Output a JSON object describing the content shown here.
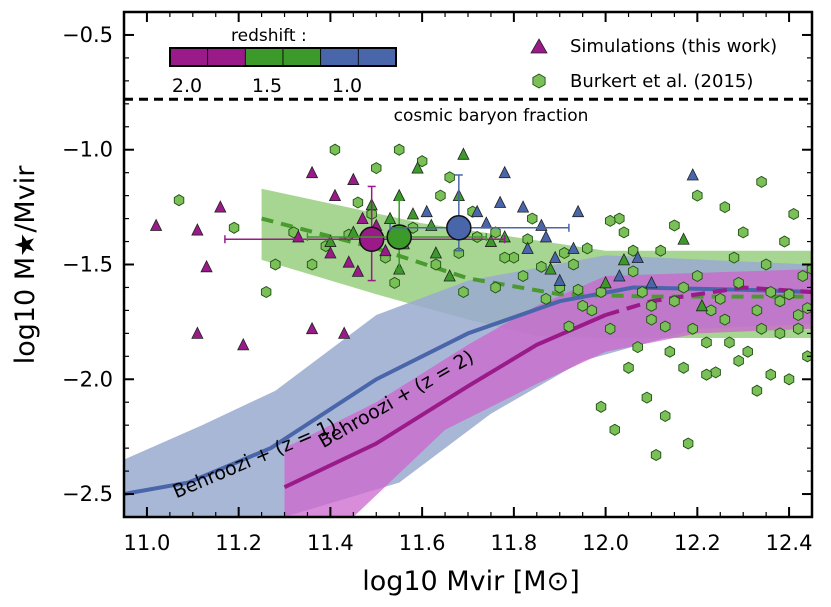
{
  "chart_data": {
    "type": "scatter",
    "title": "",
    "xlabel": "log10 Mvir [M⊙]",
    "ylabel": "log10 M★/Mvir",
    "xlim": [
      10.95,
      12.45
    ],
    "ylim": [
      -2.6,
      -0.4
    ],
    "xticks": [
      11.0,
      11.2,
      11.4,
      11.6,
      11.8,
      12.0,
      12.2,
      12.4
    ],
    "yticks": [
      -2.5,
      -2.0,
      -1.5,
      -1.0,
      -0.5
    ],
    "xtick_labels": [
      "11.0",
      "11.2",
      "11.4",
      "11.6",
      "11.8",
      "12.0",
      "12.2",
      "12.4"
    ],
    "ytick_labels": [
      "−2.5",
      "−2.0",
      "−1.5",
      "−1.0",
      "−0.5"
    ],
    "colors": {
      "magenta": "#9a1a8a",
      "green": "#3c9a2a",
      "blue": "#4a66aa",
      "green_point": "#7abf58",
      "behroozi_z2_band": "#cc66cc",
      "behroozi_z1_band": "#9aaad0",
      "burkert_band": "#7cc25e"
    },
    "colorbar": {
      "label": "redshift :",
      "ticks": [
        2.0,
        1.5,
        1.0
      ],
      "tick_labels": [
        "2.0",
        "1.5",
        "1.0"
      ],
      "segments": [
        "#9a1a8a",
        "#9a1a8a",
        "#3c9a2a",
        "#3c9a2a",
        "#4a66aa",
        "#4a66aa"
      ]
    },
    "legend": {
      "position": "top-right",
      "entries": [
        {
          "label": "Simulations (this work)",
          "marker": "triangle",
          "color": "#9a1a8a"
        },
        {
          "label": "Burkert et al. (2015)",
          "marker": "hexagon",
          "color": "#7abf58"
        }
      ]
    },
    "annotations": {
      "baryon_fraction": {
        "label": "cosmic baryon fraction",
        "y": -0.78
      },
      "behroozi_z1": {
        "label": "Behroozi + (z = 1)",
        "x": 11.24,
        "y": -2.37,
        "angle": 23
      },
      "behroozi_z2": {
        "label": "Behroozi + (z = 2)",
        "x": 11.55,
        "y": -2.11,
        "angle": 30
      }
    },
    "burkert_band": {
      "upper": [
        [
          11.25,
          -1.17
        ],
        [
          11.6,
          -1.32
        ],
        [
          11.8,
          -1.38
        ],
        [
          12.0,
          -1.44
        ],
        [
          12.2,
          -1.44
        ],
        [
          12.45,
          -1.44
        ]
      ],
      "lower": [
        [
          11.25,
          -1.48
        ],
        [
          11.5,
          -1.63
        ],
        [
          11.7,
          -1.74
        ],
        [
          11.85,
          -1.81
        ],
        [
          12.0,
          -1.82
        ],
        [
          12.2,
          -1.82
        ],
        [
          12.45,
          -1.82
        ]
      ],
      "median": [
        [
          11.25,
          -1.3
        ],
        [
          11.5,
          -1.43
        ],
        [
          11.7,
          -1.56
        ],
        [
          11.9,
          -1.63
        ],
        [
          12.1,
          -1.64
        ],
        [
          12.45,
          -1.64
        ]
      ]
    },
    "behroozi_z1": {
      "line": [
        [
          10.95,
          -2.5
        ],
        [
          11.09,
          -2.45
        ],
        [
          11.27,
          -2.3
        ],
        [
          11.5,
          -2.0
        ],
        [
          11.7,
          -1.8
        ],
        [
          11.9,
          -1.66
        ],
        [
          12.06,
          -1.6
        ],
        [
          12.3,
          -1.61
        ],
        [
          12.45,
          -1.62
        ]
      ],
      "upper": [
        [
          10.95,
          -2.35
        ],
        [
          11.12,
          -2.2
        ],
        [
          11.28,
          -2.05
        ],
        [
          11.5,
          -1.72
        ],
        [
          11.7,
          -1.57
        ],
        [
          12.0,
          -1.46
        ],
        [
          12.45,
          -1.5
        ]
      ],
      "lower": [
        [
          10.95,
          -2.6
        ],
        [
          11.3,
          -2.6
        ],
        [
          11.55,
          -2.45
        ],
        [
          11.75,
          -2.15
        ],
        [
          11.95,
          -1.92
        ],
        [
          12.2,
          -1.78
        ],
        [
          12.45,
          -1.76
        ]
      ]
    },
    "behroozi_z2": {
      "line": [
        [
          11.3,
          -2.47
        ],
        [
          11.5,
          -2.28
        ],
        [
          11.7,
          -2.03
        ],
        [
          11.85,
          -1.85
        ],
        [
          12.0,
          -1.72
        ],
        [
          12.1,
          -1.66
        ],
        [
          12.3,
          -1.6
        ],
        [
          12.45,
          -1.62
        ]
      ],
      "upper": [
        [
          11.3,
          -2.3
        ],
        [
          11.5,
          -2.1
        ],
        [
          11.7,
          -1.85
        ],
        [
          11.85,
          -1.68
        ],
        [
          12.0,
          -1.55
        ],
        [
          12.45,
          -1.52
        ]
      ],
      "lower": [
        [
          11.3,
          -2.6
        ],
        [
          11.45,
          -2.6
        ],
        [
          11.65,
          -2.22
        ],
        [
          11.85,
          -2.02
        ],
        [
          12.0,
          -1.88
        ],
        [
          12.2,
          -1.8
        ],
        [
          12.45,
          -1.78
        ]
      ],
      "dashed_from_x": 12.0
    },
    "mean_points": [
      {
        "redshift": 2.0,
        "x": 11.49,
        "y": -1.39,
        "xerr_lo": 11.17,
        "xerr_hi": 11.78,
        "yerr_lo": -1.57,
        "yerr_hi": -1.16,
        "color": "#9a1a8a"
      },
      {
        "redshift": 1.5,
        "x": 11.55,
        "y": -1.38,
        "xerr_lo": 11.35,
        "xerr_hi": 11.74,
        "yerr_lo": -1.52,
        "yerr_hi": -1.22,
        "color": "#3c9a2a"
      },
      {
        "redshift": 1.0,
        "x": 11.68,
        "y": -1.34,
        "xerr_lo": 11.53,
        "xerr_hi": 11.92,
        "yerr_lo": -1.44,
        "yerr_hi": -1.11,
        "color": "#4a66aa"
      }
    ],
    "simulations": [
      {
        "x": 11.02,
        "y": -1.33,
        "c": "m"
      },
      {
        "x": 11.11,
        "y": -1.35,
        "c": "m"
      },
      {
        "x": 11.13,
        "y": -1.51,
        "c": "m"
      },
      {
        "x": 11.16,
        "y": -1.25,
        "c": "m"
      },
      {
        "x": 11.11,
        "y": -1.8,
        "c": "m"
      },
      {
        "x": 11.21,
        "y": -1.85,
        "c": "m"
      },
      {
        "x": 11.36,
        "y": -1.1,
        "c": "m"
      },
      {
        "x": 11.45,
        "y": -1.13,
        "c": "m"
      },
      {
        "x": 11.33,
        "y": -1.38,
        "c": "m"
      },
      {
        "x": 11.4,
        "y": -1.45,
        "c": "m"
      },
      {
        "x": 11.44,
        "y": -1.49,
        "c": "m"
      },
      {
        "x": 11.46,
        "y": -1.53,
        "c": "m"
      },
      {
        "x": 11.47,
        "y": -1.3,
        "c": "m"
      },
      {
        "x": 11.43,
        "y": -1.8,
        "c": "m"
      },
      {
        "x": 11.36,
        "y": -1.78,
        "c": "m"
      },
      {
        "x": 11.52,
        "y": -1.44,
        "c": "m"
      },
      {
        "x": 11.5,
        "y": -1.33,
        "c": "m"
      },
      {
        "x": 11.41,
        "y": -1.2,
        "c": "m"
      },
      {
        "x": 11.49,
        "y": -1.24,
        "c": "g"
      },
      {
        "x": 11.53,
        "y": -1.3,
        "c": "g"
      },
      {
        "x": 11.56,
        "y": -1.41,
        "c": "g"
      },
      {
        "x": 11.58,
        "y": -1.28,
        "c": "g"
      },
      {
        "x": 11.55,
        "y": -1.2,
        "c": "g"
      },
      {
        "x": 11.62,
        "y": -1.33,
        "c": "g"
      },
      {
        "x": 11.63,
        "y": -1.45,
        "c": "g"
      },
      {
        "x": 11.68,
        "y": -1.2,
        "c": "g"
      },
      {
        "x": 11.69,
        "y": -1.02,
        "c": "g"
      },
      {
        "x": 11.59,
        "y": -1.08,
        "c": "g"
      },
      {
        "x": 11.75,
        "y": -1.4,
        "c": "g"
      },
      {
        "x": 11.78,
        "y": -1.38,
        "c": "g"
      },
      {
        "x": 11.4,
        "y": -1.4,
        "c": "g"
      },
      {
        "x": 11.45,
        "y": -1.36,
        "c": "g"
      },
      {
        "x": 11.88,
        "y": -1.52,
        "c": "g"
      },
      {
        "x": 11.66,
        "y": -1.55,
        "c": "g"
      },
      {
        "x": 12.04,
        "y": -1.48,
        "c": "g"
      },
      {
        "x": 12.17,
        "y": -1.39,
        "c": "g"
      },
      {
        "x": 12.21,
        "y": -1.68,
        "c": "g"
      },
      {
        "x": 12.0,
        "y": -1.58,
        "c": "g"
      },
      {
        "x": 11.55,
        "y": -1.52,
        "c": "g"
      },
      {
        "x": 11.72,
        "y": -1.27,
        "c": "b"
      },
      {
        "x": 11.77,
        "y": -1.23,
        "c": "b"
      },
      {
        "x": 11.74,
        "y": -1.32,
        "c": "b"
      },
      {
        "x": 11.82,
        "y": -1.25,
        "c": "b"
      },
      {
        "x": 11.86,
        "y": -1.33,
        "c": "b"
      },
      {
        "x": 11.94,
        "y": -1.27,
        "c": "b"
      },
      {
        "x": 11.87,
        "y": -1.38,
        "c": "b"
      },
      {
        "x": 11.83,
        "y": -1.43,
        "c": "b"
      },
      {
        "x": 11.78,
        "y": -1.1,
        "c": "b"
      },
      {
        "x": 11.61,
        "y": -1.27,
        "c": "b"
      },
      {
        "x": 11.93,
        "y": -1.43,
        "c": "b"
      },
      {
        "x": 12.07,
        "y": -1.47,
        "c": "b"
      },
      {
        "x": 12.19,
        "y": -1.11,
        "c": "b"
      },
      {
        "x": 12.03,
        "y": -1.55,
        "c": "b"
      },
      {
        "x": 12.1,
        "y": -1.58,
        "c": "b"
      },
      {
        "x": 11.9,
        "y": -1.57,
        "c": "b"
      },
      {
        "x": 11.89,
        "y": -1.47,
        "c": "b"
      }
    ],
    "burkert": [
      [
        11.07,
        -1.22
      ],
      [
        11.19,
        -1.34
      ],
      [
        11.26,
        -1.62
      ],
      [
        11.28,
        -1.5
      ],
      [
        11.32,
        -1.36
      ],
      [
        11.36,
        -1.5
      ],
      [
        11.39,
        -1.42
      ],
      [
        11.44,
        -1.37
      ],
      [
        11.48,
        -1.4
      ],
      [
        11.52,
        -1.47
      ],
      [
        11.41,
        -1.0
      ],
      [
        11.55,
        -1.0
      ],
      [
        11.5,
        -1.08
      ],
      [
        11.6,
        -1.05
      ],
      [
        11.66,
        -1.12
      ],
      [
        11.64,
        -1.2
      ],
      [
        11.58,
        -1.34
      ],
      [
        11.46,
        -1.23
      ],
      [
        11.71,
        -1.27
      ],
      [
        11.76,
        -1.36
      ],
      [
        11.72,
        -1.38
      ],
      [
        11.8,
        -1.47
      ],
      [
        11.83,
        -1.39
      ],
      [
        11.86,
        -1.51
      ],
      [
        11.87,
        -1.65
      ],
      [
        11.9,
        -1.6
      ],
      [
        11.93,
        -1.5
      ],
      [
        11.94,
        -1.61
      ],
      [
        11.96,
        -1.43
      ],
      [
        11.97,
        -1.7
      ],
      [
        11.99,
        -1.62
      ],
      [
        12.01,
        -1.78
      ],
      [
        12.03,
        -1.3
      ],
      [
        12.04,
        -1.36
      ],
      [
        12.06,
        -1.53
      ],
      [
        12.08,
        -1.62
      ],
      [
        12.1,
        -1.68
      ],
      [
        12.12,
        -1.44
      ],
      [
        12.13,
        -1.77
      ],
      [
        12.14,
        -1.88
      ],
      [
        12.17,
        -1.6
      ],
      [
        12.19,
        -1.78
      ],
      [
        12.2,
        -1.55
      ],
      [
        12.22,
        -1.84
      ],
      [
        12.24,
        -1.97
      ],
      [
        12.25,
        -1.65
      ],
      [
        12.26,
        -1.74
      ],
      [
        12.28,
        -1.47
      ],
      [
        12.29,
        -1.58
      ],
      [
        12.31,
        -1.88
      ],
      [
        12.33,
        -1.7
      ],
      [
        12.35,
        -1.5
      ],
      [
        12.36,
        -1.62
      ],
      [
        12.38,
        -1.8
      ],
      [
        12.39,
        -1.4
      ],
      [
        12.4,
        -1.63
      ],
      [
        12.42,
        -1.78
      ],
      [
        12.43,
        -1.55
      ],
      [
        12.44,
        -1.69
      ],
      [
        12.3,
        -1.36
      ],
      [
        12.2,
        -1.2
      ],
      [
        12.26,
        -1.25
      ],
      [
        12.41,
        -1.28
      ],
      [
        12.34,
        -1.14
      ],
      [
        12.15,
        -1.33
      ],
      [
        12.01,
        -1.31
      ],
      [
        11.99,
        -2.12
      ],
      [
        12.02,
        -2.22
      ],
      [
        12.13,
        -2.16
      ],
      [
        12.18,
        -2.28
      ],
      [
        12.11,
        -2.33
      ],
      [
        12.17,
        -1.95
      ],
      [
        12.05,
        -1.95
      ],
      [
        12.09,
        -2.08
      ],
      [
        12.33,
        -2.05
      ],
      [
        12.36,
        -1.98
      ],
      [
        12.4,
        -2.0
      ],
      [
        12.44,
        -1.9
      ],
      [
        12.22,
        -1.98
      ],
      [
        12.29,
        -1.92
      ],
      [
        11.76,
        -1.6
      ],
      [
        11.82,
        -1.55
      ],
      [
        11.69,
        -1.62
      ],
      [
        11.95,
        -1.68
      ],
      [
        11.92,
        -1.77
      ],
      [
        12.07,
        -1.86
      ],
      [
        12.15,
        -1.66
      ],
      [
        12.23,
        -1.7
      ],
      [
        12.38,
        -1.66
      ],
      [
        11.54,
        -1.58
      ],
      [
        11.63,
        -1.5
      ],
      [
        11.78,
        -1.47
      ],
      [
        11.84,
        -1.3
      ],
      [
        11.91,
        -1.45
      ],
      [
        12.06,
        -1.44
      ],
      [
        12.1,
        -1.74
      ],
      [
        12.27,
        -1.84
      ],
      [
        12.34,
        -1.78
      ],
      [
        12.42,
        -1.72
      ],
      [
        12.45,
        -1.52
      ],
      [
        11.49,
        -1.28
      ],
      [
        11.68,
        -1.45
      ]
    ]
  }
}
